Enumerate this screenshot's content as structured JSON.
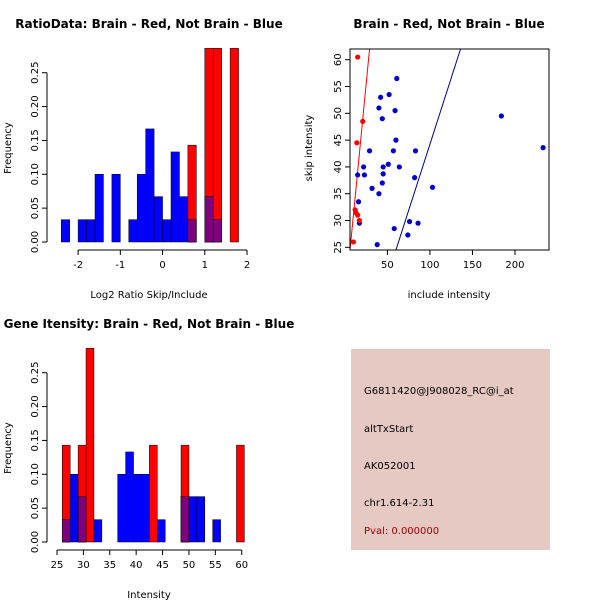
{
  "chart_data": [
    {
      "type": "bar",
      "title": "RatioData: Brain - Red, Not Brain - Blue",
      "xlabel": "Log2 Ratio Skip/Include",
      "ylabel": "Frequency",
      "xlim": [
        -2.5,
        2
      ],
      "ylim": [
        0,
        0.285
      ],
      "xticks": [
        -2,
        -1,
        0,
        1,
        2
      ],
      "xtick_labels": [
        "-2",
        "-1",
        "0",
        "1",
        "2"
      ],
      "yticks": [
        0,
        0.05,
        0.1,
        0.15,
        0.2,
        0.25
      ],
      "ytick_labels": [
        "0.00",
        "0.05",
        "0.10",
        "0.15",
        "0.20",
        "0.25"
      ],
      "series": [
        {
          "name": "Not Brain",
          "color": "#0000ff",
          "bin_width": 0.2,
          "bins": [
            [
              -2.4,
              0.033
            ],
            [
              -2.0,
              0.033
            ],
            [
              -1.8,
              0.033
            ],
            [
              -1.6,
              0.1
            ],
            [
              -1.2,
              0.1
            ],
            [
              -0.8,
              0.033
            ],
            [
              -0.6,
              0.1
            ],
            [
              -0.4,
              0.167
            ],
            [
              -0.2,
              0.067
            ],
            [
              0.0,
              0.033
            ],
            [
              0.2,
              0.133
            ],
            [
              0.4,
              0.067
            ],
            [
              0.6,
              0.033
            ],
            [
              1.0,
              0.067
            ],
            [
              1.2,
              0.033
            ]
          ]
        },
        {
          "name": "Brain",
          "color": "#ff0000",
          "bin_width": 0.2,
          "bins": [
            [
              0.6,
              0.143
            ],
            [
              1.2,
              0.286
            ],
            [
              1.0,
              0.286
            ],
            [
              1.6,
              0.286
            ]
          ]
        }
      ]
    },
    {
      "type": "scatter",
      "title": "Brain - Red, Not Brain - Blue",
      "xlabel": "include intensity",
      "ylabel": "skip intensity",
      "xlim": [
        6,
        240
      ],
      "ylim": [
        24.5,
        62
      ],
      "xticks": [
        50,
        100,
        150,
        200
      ],
      "xtick_labels": [
        "50",
        "100",
        "150",
        "200"
      ],
      "yticks": [
        25,
        30,
        35,
        40,
        45,
        50,
        55,
        60
      ],
      "ytick_labels": [
        "25",
        "30",
        "35",
        "40",
        "45",
        "50",
        "55",
        "60"
      ],
      "series": [
        {
          "name": "Not Brain",
          "color": "#0000cc",
          "points": [
            [
              17,
              29.5
            ],
            [
              16,
              33.5
            ],
            [
              15,
              38.5
            ],
            [
              23,
              38.5
            ],
            [
              22,
              40
            ],
            [
              29,
              43
            ],
            [
              32,
              36
            ],
            [
              40,
              35
            ],
            [
              44,
              37
            ],
            [
              45,
              38.7
            ],
            [
              45,
              40
            ],
            [
              51,
              40.5
            ],
            [
              57,
              43
            ],
            [
              60,
              45
            ],
            [
              64,
              40
            ],
            [
              40,
              51
            ],
            [
              42,
              53
            ],
            [
              44,
              49
            ],
            [
              52,
              53.5
            ],
            [
              59,
              50.5
            ],
            [
              61,
              56.5
            ],
            [
              38,
              25.5
            ],
            [
              58,
              28.5
            ],
            [
              74,
              27.3
            ],
            [
              76,
              29.8
            ],
            [
              86,
              29.5
            ],
            [
              83,
              43
            ],
            [
              82,
              38
            ],
            [
              103,
              36.2
            ],
            [
              184,
              49.5
            ],
            [
              233,
              43.6
            ]
          ]
        },
        {
          "name": "Brain",
          "color": "#ff0000",
          "points": [
            [
              10,
              26
            ],
            [
              12,
              32
            ],
            [
              13,
              31.5
            ],
            [
              15,
              31
            ],
            [
              17,
              30
            ],
            [
              14,
              44.5
            ],
            [
              21,
              48.5
            ],
            [
              15,
              60.5
            ]
          ]
        }
      ],
      "lines": [
        {
          "name": "Brain fit",
          "color": "#ff0000",
          "from": [
            6,
            24.5
          ],
          "to": [
            29,
            62
          ]
        },
        {
          "name": "Not Brain fit",
          "color": "#000080",
          "from": [
            60,
            24.5
          ],
          "to": [
            136,
            62
          ]
        }
      ]
    },
    {
      "type": "bar",
      "title": "Gene Itensity: Brain - Red, Not Brain - Blue",
      "xlabel": "Intensity",
      "ylabel": "Frequency",
      "xlim": [
        25,
        61
      ],
      "ylim": [
        0,
        0.285
      ],
      "xticks": [
        25,
        30,
        35,
        40,
        45,
        50,
        55,
        60
      ],
      "xtick_labels": [
        "25",
        "30",
        "35",
        "40",
        "45",
        "50",
        "55",
        "60"
      ],
      "yticks": [
        0,
        0.05,
        0.1,
        0.15,
        0.2,
        0.25
      ],
      "ytick_labels": [
        "0.00",
        "0.05",
        "0.10",
        "0.15",
        "0.20",
        "0.25"
      ],
      "series": [
        {
          "name": "Not Brain",
          "color": "#0000ff",
          "bin_width": 1.5,
          "bins": [
            [
              26,
              0.033
            ],
            [
              27.5,
              0.1
            ],
            [
              29,
              0.067
            ],
            [
              32,
              0.033
            ],
            [
              36.5,
              0.1
            ],
            [
              38,
              0.133
            ],
            [
              39.5,
              0.1
            ],
            [
              41,
              0.1
            ],
            [
              44,
              0.033
            ],
            [
              48.5,
              0.067
            ],
            [
              50,
              0.067
            ],
            [
              51.5,
              0.067
            ],
            [
              54.5,
              0.033
            ]
          ]
        },
        {
          "name": "Brain",
          "color": "#ff0000",
          "bin_width": 1.5,
          "bins": [
            [
              26,
              0.143
            ],
            [
              29,
              0.143
            ],
            [
              30.5,
              0.286
            ],
            [
              42.5,
              0.143
            ],
            [
              48.5,
              0.143
            ],
            [
              59,
              0.143
            ]
          ]
        }
      ]
    }
  ],
  "info_panel": {
    "lines": [
      "G6811420@J908028_RC@i_at",
      "altTxStart",
      "AK052001",
      "chr1.614-2.31"
    ],
    "pval": "Pval: 0.000000",
    "bg_color": "#e6c9c2",
    "pval_color": "#aa0000"
  }
}
